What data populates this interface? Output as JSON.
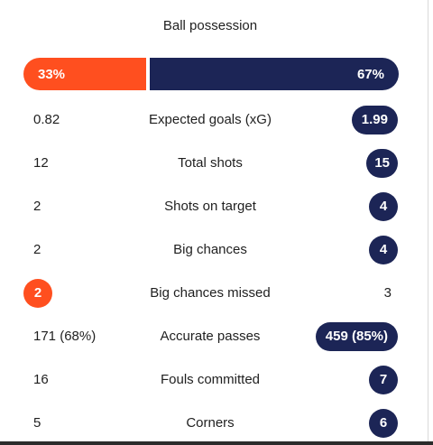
{
  "possession": {
    "title": "Ball possession",
    "home": {
      "label": "33%",
      "value": 33
    },
    "away": {
      "label": "67%",
      "value": 67
    }
  },
  "colors": {
    "home": "#ff4f1f",
    "away": "#1c2556"
  },
  "stats": [
    {
      "label": "Expected goals (xG)",
      "home": "0.82",
      "away": "1.99",
      "leader": "away"
    },
    {
      "label": "Total shots",
      "home": "12",
      "away": "15",
      "leader": "away"
    },
    {
      "label": "Shots on target",
      "home": "2",
      "away": "4",
      "leader": "away"
    },
    {
      "label": "Big chances",
      "home": "2",
      "away": "4",
      "leader": "away"
    },
    {
      "label": "Big chances missed",
      "home": "2",
      "away": "3",
      "leader": "home"
    },
    {
      "label": "Accurate passes",
      "home": "171 (68%)",
      "away": "459 (85%)",
      "leader": "away"
    },
    {
      "label": "Fouls committed",
      "home": "16",
      "away": "7",
      "leader": "away"
    },
    {
      "label": "Corners",
      "home": "5",
      "away": "6",
      "leader": "away"
    }
  ]
}
